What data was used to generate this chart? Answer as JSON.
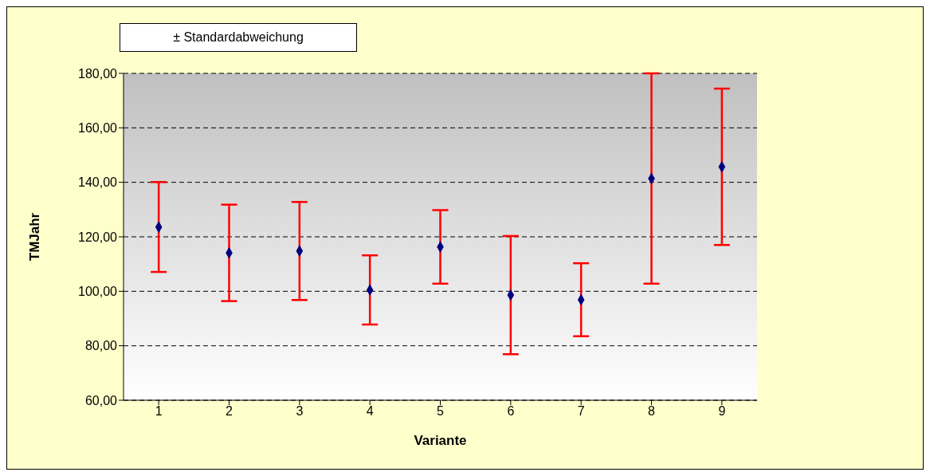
{
  "chart_data": {
    "type": "scatter",
    "xlabel": "Variante",
    "ylabel": "TMJahr",
    "annotations": [
      "± Standardabweichung"
    ],
    "categories": [
      "1",
      "2",
      "3",
      "4",
      "5",
      "6",
      "7",
      "8",
      "9"
    ],
    "series": [
      {
        "color": "#000080",
        "values": [
          123.6,
          114.1,
          114.8,
          100.5,
          116.3,
          98.6,
          96.9,
          141.4,
          145.7
        ],
        "errors": [
          16.5,
          17.7,
          18.0,
          12.7,
          13.5,
          21.7,
          13.4,
          38.6,
          28.7
        ]
      }
    ],
    "ylim": [
      60,
      180
    ],
    "yticks": [
      {
        "value": 60,
        "label": "60,00"
      },
      {
        "value": 80,
        "label": "80,00"
      },
      {
        "value": 100,
        "label": "100,00"
      },
      {
        "value": 120,
        "label": "120,00"
      },
      {
        "value": 140,
        "label": "140,00"
      },
      {
        "value": 160,
        "label": "160,00"
      },
      {
        "value": 180,
        "label": "180,00"
      }
    ],
    "grid": "y",
    "marker": "diamond",
    "legend": false
  }
}
